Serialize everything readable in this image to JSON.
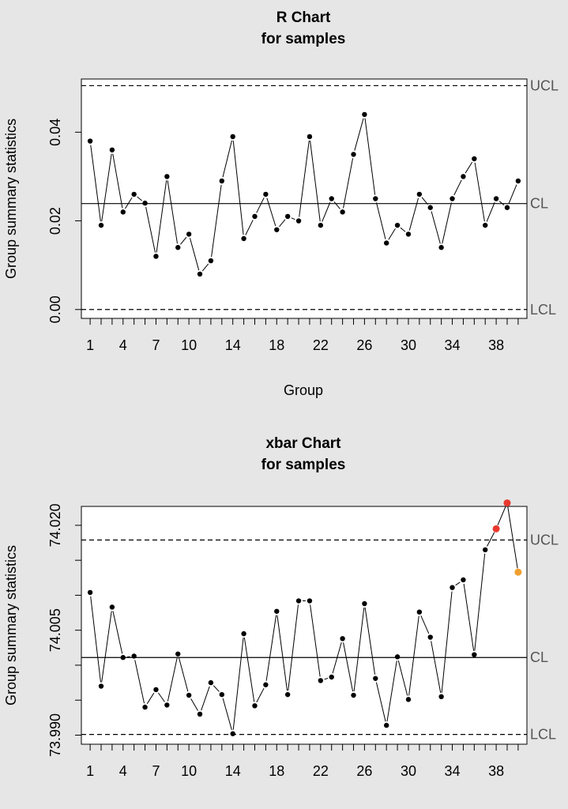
{
  "chart_data": [
    {
      "type": "line",
      "title": "R Chart",
      "subtitle": "for samples",
      "xlabel": "Group",
      "ylabel": "Group summary statistics",
      "x_ticks": [
        "1",
        "4",
        "7",
        "10",
        "14",
        "18",
        "22",
        "26",
        "30",
        "34",
        "38"
      ],
      "y_ticks": [
        "0.00",
        "0.02",
        "0.04"
      ],
      "ylim": [
        -0.002,
        0.052
      ],
      "x": [
        1,
        2,
        3,
        4,
        5,
        6,
        7,
        8,
        9,
        10,
        11,
        12,
        13,
        14,
        15,
        16,
        17,
        18,
        19,
        20,
        21,
        22,
        23,
        24,
        25,
        26,
        27,
        28,
        29,
        30,
        31,
        32,
        33,
        34,
        35,
        36,
        37,
        38,
        39,
        40
      ],
      "values": [
        0.038,
        0.019,
        0.036,
        0.022,
        0.026,
        0.024,
        0.012,
        0.03,
        0.014,
        0.017,
        0.008,
        0.011,
        0.029,
        0.039,
        0.016,
        0.021,
        0.026,
        0.018,
        0.021,
        0.02,
        0.039,
        0.019,
        0.025,
        0.022,
        0.035,
        0.044,
        0.025,
        0.015,
        0.019,
        0.017,
        0.026,
        0.023,
        0.014,
        0.025,
        0.03,
        0.034,
        0.019,
        0.025,
        0.023,
        0.029
      ],
      "limits": {
        "UCL": 0.0505,
        "CL": 0.0239,
        "LCL": 0.0
      },
      "limit_labels": {
        "ucl": "UCL",
        "cl": "CL",
        "lcl": "LCL"
      },
      "point_colors": {
        "normal": "#000000",
        "beyond": "#e8392f",
        "violating": "#f0a030"
      }
    },
    {
      "type": "line",
      "title": "xbar Chart",
      "subtitle": "for samples",
      "xlabel": "",
      "ylabel": "Group summary statistics",
      "x_ticks": [
        "1",
        "4",
        "7",
        "10",
        "14",
        "18",
        "22",
        "26",
        "30",
        "34",
        "38"
      ],
      "y_ticks": [
        "73.990",
        "73.995",
        "74.000",
        "74.005",
        "74.010",
        "74.015",
        "74.020"
      ],
      "y_tick_labels": [
        "73.990",
        "",
        "",
        "74.005",
        "",
        "",
        "74.020"
      ],
      "ylim": [
        73.9887,
        74.0227
      ],
      "x": [
        1,
        2,
        3,
        4,
        5,
        6,
        7,
        8,
        9,
        10,
        11,
        12,
        13,
        14,
        15,
        16,
        17,
        18,
        19,
        20,
        21,
        22,
        23,
        24,
        25,
        26,
        27,
        28,
        29,
        30,
        31,
        32,
        33,
        34,
        35,
        36,
        37,
        38,
        39,
        40
      ],
      "values": [
        74.0104,
        73.997,
        74.0083,
        74.0011,
        74.0013,
        73.994,
        73.9965,
        73.9943,
        74.0016,
        73.9957,
        73.993,
        73.9975,
        73.9958,
        73.9902,
        74.0045,
        73.9942,
        73.9972,
        74.0077,
        73.9958,
        74.0092,
        74.0092,
        73.9978,
        73.9983,
        74.0038,
        73.9957,
        74.0088,
        73.9981,
        73.9914,
        74.0012,
        73.9951,
        74.0076,
        74.004,
        73.9955,
        74.0111,
        74.0122,
        74.0015,
        74.0165,
        74.0195,
        74.0232,
        74.0133
      ],
      "point_status": [
        "n",
        "n",
        "n",
        "n",
        "n",
        "n",
        "n",
        "n",
        "n",
        "n",
        "n",
        "n",
        "n",
        "n",
        "n",
        "n",
        "n",
        "n",
        "n",
        "n",
        "n",
        "n",
        "n",
        "n",
        "n",
        "n",
        "n",
        "n",
        "n",
        "n",
        "n",
        "n",
        "n",
        "n",
        "n",
        "n",
        "n",
        "b",
        "b",
        "v"
      ],
      "limits": {
        "UCL": 74.0179,
        "CL": 74.0011,
        "LCL": 73.9901
      },
      "limit_labels": {
        "ucl": "UCL",
        "cl": "CL",
        "lcl": "LCL"
      },
      "point_colors": {
        "normal": "#000000",
        "beyond": "#e8392f",
        "violating": "#f0a030"
      }
    }
  ]
}
